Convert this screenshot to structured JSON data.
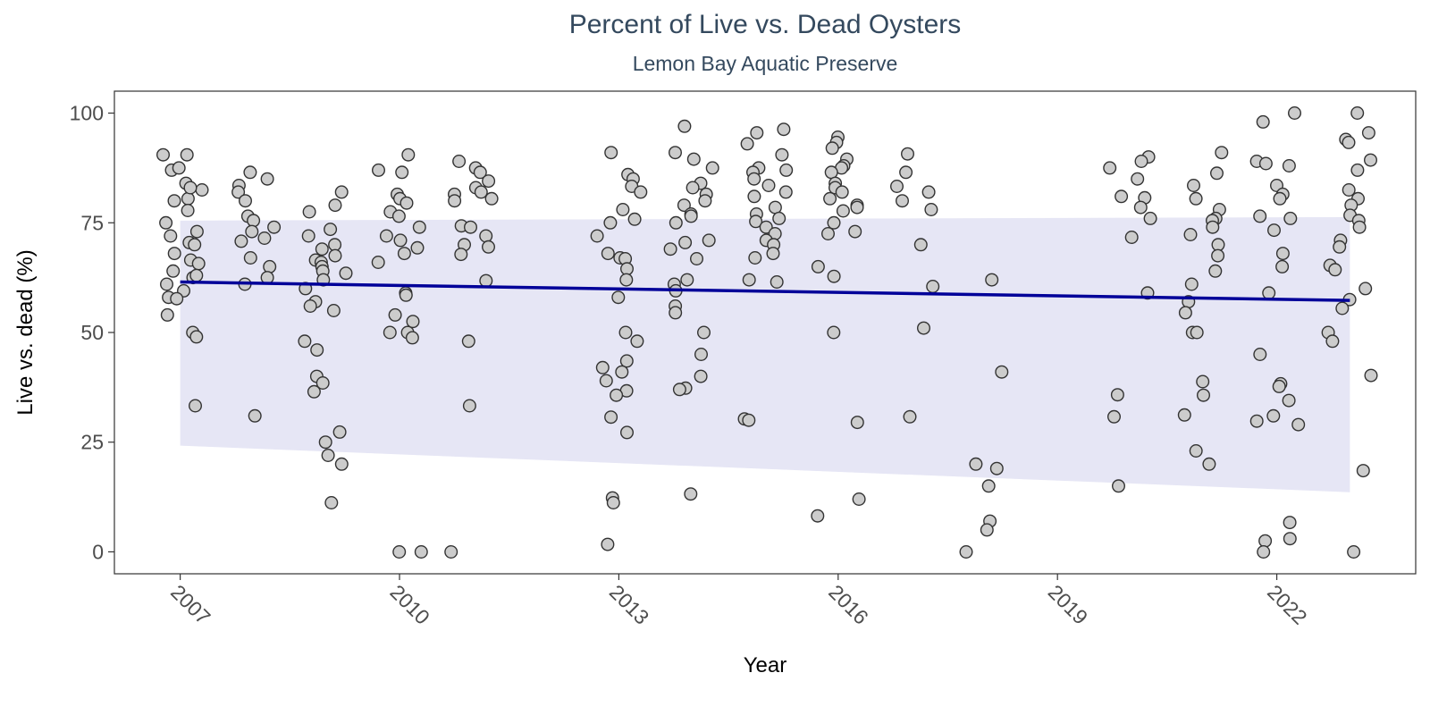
{
  "chart_data": {
    "type": "scatter",
    "title": "Percent of Live vs. Dead Oysters",
    "subtitle": "Lemon Bay Aquatic Preserve",
    "xlabel": "Year",
    "ylabel": "Live vs. dead (%)",
    "xlim": [
      2006.1,
      2023.9
    ],
    "ylim": [
      -5,
      105
    ],
    "x_ticks": [
      2007,
      2010,
      2013,
      2016,
      2019,
      2022
    ],
    "x_tick_labels": [
      "2007",
      "2010",
      "2013",
      "2016",
      "2019",
      "2022"
    ],
    "y_ticks": [
      0,
      25,
      50,
      75,
      100
    ],
    "y_tick_labels": [
      "0",
      "25",
      "50",
      "75",
      "100"
    ],
    "grid": false,
    "colors": {
      "title": "#34495e",
      "point_fill": "#cccccc",
      "point_stroke": "#333333",
      "trend_line": "#000099",
      "ribbon": "#e6e6f5",
      "panel_border": "#333333"
    },
    "trend": {
      "x": [
        2007,
        2023
      ],
      "y": [
        61.5,
        57.3
      ],
      "ribbon_lower": [
        24.2,
        13.6
      ],
      "ribbon_upper": [
        75.5,
        76.3
      ]
    },
    "points": [
      {
        "year": 2007,
        "values": [
          90.5,
          87,
          84,
          82.5,
          80.5,
          77.8,
          75,
          73,
          70.5,
          70,
          66.5,
          64,
          62.5,
          61,
          59.5,
          58,
          54,
          50,
          49,
          33.3,
          90.5,
          87.5,
          83,
          80,
          72,
          68,
          65.7,
          63,
          57.7
        ]
      },
      {
        "year": 2008,
        "values": [
          86.5,
          85,
          83.5,
          82,
          80,
          76.5,
          75.5,
          74,
          73,
          71.5,
          70.8,
          67,
          65,
          62.5,
          61,
          31
        ]
      },
      {
        "year": 2009,
        "values": [
          82,
          79,
          77.5,
          73.5,
          72,
          70,
          69,
          67.5,
          66.5,
          66,
          65,
          64,
          63.5,
          62,
          60,
          57,
          56,
          55,
          48,
          46,
          40,
          38.5,
          36.5,
          27.3,
          25,
          22,
          20,
          11.2
        ]
      },
      {
        "year": 2010,
        "values": [
          90.5,
          87,
          86.5,
          81.5,
          80.5,
          79.5,
          77.5,
          76.5,
          74,
          72,
          71,
          69.3,
          68,
          66,
          59,
          58.5,
          54,
          52.5,
          50,
          50,
          48.8,
          0,
          0
        ]
      },
      {
        "year": 2011,
        "values": [
          89,
          87.5,
          86.5,
          84.5,
          83,
          82,
          81.5,
          80.5,
          80,
          74.3,
          74,
          72,
          70,
          69.5,
          67.8,
          61.8,
          48,
          33.3,
          0
        ]
      },
      {
        "year": 2013,
        "values": [
          91,
          86,
          85,
          83.3,
          82,
          78,
          75.8,
          75,
          72,
          68,
          67,
          66.8,
          64.5,
          62,
          58,
          50,
          48,
          43.5,
          42,
          41,
          39,
          36.7,
          35.7,
          30.7,
          27.2,
          12.3,
          11.2,
          1.7
        ]
      },
      {
        "year": 2014,
        "values": [
          97,
          91,
          89.5,
          87.5,
          84,
          83,
          81.5,
          80,
          79,
          77,
          76.5,
          75,
          71,
          70.5,
          69,
          66.8,
          62,
          61,
          59.5,
          56,
          54.5,
          50,
          45,
          40,
          37.3,
          37,
          13.2
        ]
      },
      {
        "year": 2015,
        "values": [
          96.3,
          95.5,
          93,
          90.5,
          87.5,
          87,
          86.5,
          85,
          83.5,
          82,
          81,
          78.5,
          77,
          76,
          75.3,
          74,
          72.5,
          71,
          70,
          68,
          67,
          62,
          61.5,
          30.3,
          30
        ]
      },
      {
        "year": 2016,
        "values": [
          94.5,
          93.3,
          92,
          89.5,
          88,
          87.5,
          86.5,
          84,
          83,
          82,
          80.5,
          79,
          78.5,
          77.7,
          75,
          73,
          72.5,
          65,
          62.8,
          50,
          29.5,
          12,
          8.2
        ]
      },
      {
        "year": 2017,
        "values": [
          90.7,
          86.5,
          83.3,
          82,
          80,
          78,
          70,
          60.5,
          51,
          30.8
        ]
      },
      {
        "year": 2018,
        "values": [
          62,
          41,
          20,
          19,
          15,
          7,
          5,
          0
        ]
      },
      {
        "year": 2020,
        "values": [
          90,
          89,
          87.5,
          85,
          81,
          80.7,
          78.5,
          76,
          71.7,
          59,
          35.8,
          30.8,
          15
        ]
      },
      {
        "year": 2021,
        "values": [
          91,
          86.3,
          83.5,
          80.5,
          78,
          76,
          75.5,
          74,
          72.3,
          70,
          67.5,
          64,
          61,
          57,
          54.5,
          50,
          50,
          38.8,
          35.7,
          31.2,
          23,
          20
        ]
      },
      {
        "year": 2022,
        "values": [
          100,
          98,
          89,
          88.5,
          88,
          83.5,
          81.5,
          80.5,
          76.5,
          76,
          73.3,
          68,
          65,
          59,
          45,
          38.3,
          37.7,
          34.5,
          31,
          29.8,
          29,
          6.7,
          3,
          2.5,
          0
        ]
      },
      {
        "year": 2023,
        "values": [
          100,
          95.5,
          94,
          93.3,
          89.3,
          87,
          82.5,
          80.5,
          79,
          76.7,
          75.5,
          74,
          71,
          69.5,
          65.3,
          64.3,
          60,
          57.5,
          55.5,
          50,
          48,
          40.2,
          18.5,
          0
        ]
      }
    ]
  }
}
